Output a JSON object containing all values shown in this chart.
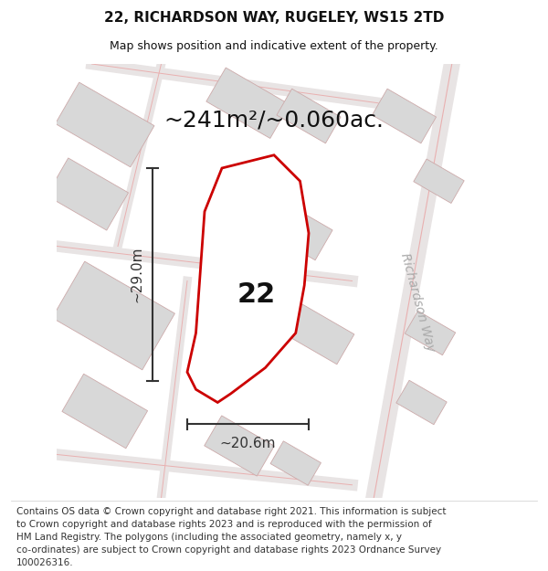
{
  "title": "22, RICHARDSON WAY, RUGELEY, WS15 2TD",
  "subtitle": "Map shows position and indicative extent of the property.",
  "area_label": "~241m²/~0.060ac.",
  "number_label": "22",
  "dim_h": "~29.0m",
  "dim_w": "~20.6m",
  "road_label": "Richardson Way",
  "footer_lines": [
    "Contains OS data © Crown copyright and database right 2021. This information is subject",
    "to Crown copyright and database rights 2023 and is reproduced with the permission of",
    "HM Land Registry. The polygons (including the associated geometry, namely x, y",
    "co-ordinates) are subject to Crown copyright and database rights 2023 Ordnance Survey",
    "100026316."
  ],
  "map_bg": "#efecec",
  "plot_fill": "#ffffff",
  "plot_stroke": "#cc0000",
  "road_stroke": "#e8b0b0",
  "building_fill": "#d8d8d8",
  "building_stroke": "#ccaaaa",
  "dim_color": "#333333",
  "title_color": "#111111",
  "area_color": "#111111",
  "number_color": "#111111",
  "road_label_color": "#aaaaaa",
  "footer_color": "#333333",
  "title_fontsize": 11,
  "subtitle_fontsize": 9,
  "area_fontsize": 18,
  "number_fontsize": 22,
  "dim_fontsize": 11,
  "road_label_fontsize": 10,
  "footer_fontsize": 7.5
}
